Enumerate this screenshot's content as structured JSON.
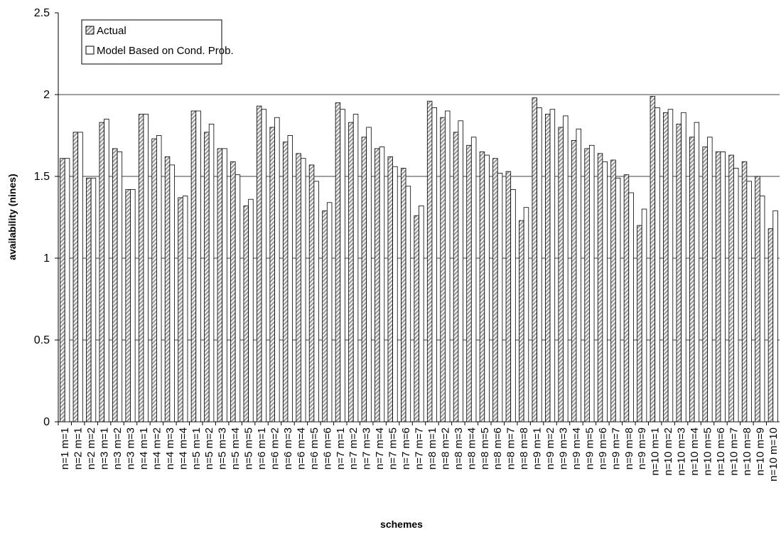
{
  "chart_data": {
    "type": "bar",
    "x_label": "schemes",
    "y_label": "availability (nines)",
    "categories": [
      "n=1 m=1",
      "n=2 m=1",
      "n=2 m=2",
      "n=3 m=1",
      "n=3 m=2",
      "n=3 m=3",
      "n=4 m=1",
      "n=4 m=2",
      "n=4 m=3",
      "n=4 m=4",
      "n=5 m=1",
      "n=5 m=2",
      "n=5 m=3",
      "n=5 m=4",
      "n=5 m=5",
      "n=6 m=1",
      "n=6 m=2",
      "n=6 m=3",
      "n=6 m=4",
      "n=6 m=5",
      "n=6 m=6",
      "n=7 m=1",
      "n=7 m=2",
      "n=7 m=3",
      "n=7 m=4",
      "n=7 m=5",
      "n=7 m=6",
      "n=7 m=7",
      "n=8 m=1",
      "n=8 m=2",
      "n=8 m=3",
      "n=8 m=4",
      "n=8 m=5",
      "n=8 m=6",
      "n=8 m=7",
      "n=8 m=8",
      "n=9 m=1",
      "n=9 m=2",
      "n=9 m=3",
      "n=9 m=4",
      "n=9 m=5",
      "n=9 m=6",
      "n=9 m=7",
      "n=9 m=8",
      "n=9 m=9",
      "n=10 m=1",
      "n=10 m=2",
      "n=10 m=3",
      "n=10 m=4",
      "n=10 m=5",
      "n=10 m=6",
      "n=10 m=7",
      "n=10 m=8",
      "n=10 m=9",
      "n=10 m=10"
    ],
    "series": [
      {
        "name": "Actual",
        "color": "#9a9a9a",
        "hatch": true,
        "values": [
          1.61,
          1.77,
          1.49,
          1.83,
          1.67,
          1.42,
          1.88,
          1.73,
          1.62,
          1.37,
          1.9,
          1.77,
          1.67,
          1.59,
          1.32,
          1.93,
          1.8,
          1.71,
          1.64,
          1.57,
          1.29,
          1.95,
          1.83,
          1.74,
          1.67,
          1.62,
          1.55,
          1.26,
          1.96,
          1.86,
          1.77,
          1.69,
          1.65,
          1.61,
          1.53,
          1.23,
          1.98,
          1.88,
          1.8,
          1.72,
          1.67,
          1.64,
          1.6,
          1.51,
          1.2,
          1.99,
          1.89,
          1.82,
          1.74,
          1.68,
          1.65,
          1.63,
          1.59,
          1.5,
          1.18
        ]
      },
      {
        "name": "Model Based on Cond. Prob.",
        "color": "#ffffff",
        "hatch": false,
        "values": [
          1.61,
          1.77,
          1.49,
          1.85,
          1.65,
          1.42,
          1.88,
          1.75,
          1.57,
          1.38,
          1.9,
          1.82,
          1.67,
          1.51,
          1.36,
          1.91,
          1.86,
          1.75,
          1.61,
          1.47,
          1.34,
          1.91,
          1.88,
          1.8,
          1.68,
          1.56,
          1.44,
          1.32,
          1.92,
          1.9,
          1.84,
          1.74,
          1.63,
          1.52,
          1.42,
          1.31,
          1.92,
          1.91,
          1.87,
          1.79,
          1.69,
          1.59,
          1.49,
          1.4,
          1.3,
          1.92,
          1.91,
          1.89,
          1.83,
          1.74,
          1.65,
          1.55,
          1.47,
          1.38,
          1.29
        ]
      }
    ],
    "ylim": [
      0,
      2.5
    ],
    "yticks": [
      0,
      0.5,
      1,
      1.5,
      2,
      2.5
    ],
    "grid": true,
    "legend": "top-left"
  }
}
